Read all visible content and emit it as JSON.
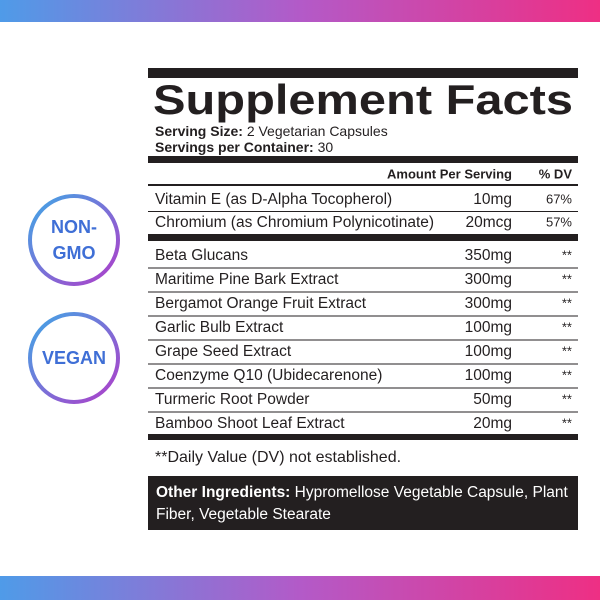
{
  "badges": [
    {
      "lines": [
        "NON-",
        "GMO"
      ]
    },
    {
      "lines": [
        "VEGAN"
      ]
    }
  ],
  "label": {
    "title": "Supplement Facts",
    "serving_size": {
      "label": "Serving Size:",
      "value": "2 Vegetarian Capsules"
    },
    "servings_per_container": {
      "label": "Servings per Container:",
      "value": "30"
    },
    "header": {
      "amount": "Amount Per Serving",
      "dv": "% DV"
    },
    "vitamins": [
      {
        "name": "Vitamin E (as D-Alpha Tocopherol)",
        "amount": "10mg",
        "dv": "67%"
      },
      {
        "name": "Chromium (as Chromium Polynicotinate)",
        "amount": "20mcg",
        "dv": "57%"
      }
    ],
    "extracts": [
      {
        "name": "Beta Glucans",
        "amount": "350mg",
        "dv": "**"
      },
      {
        "name": "Maritime Pine Bark Extract",
        "amount": "300mg",
        "dv": "**"
      },
      {
        "name": "Bergamot Orange Fruit Extract",
        "amount": "300mg",
        "dv": "**"
      },
      {
        "name": "Garlic Bulb Extract",
        "amount": "100mg",
        "dv": "**"
      },
      {
        "name": "Grape Seed Extract",
        "amount": "100mg",
        "dv": "**"
      },
      {
        "name": "Coenzyme Q10 (Ubidecarenone)",
        "amount": "100mg",
        "dv": "**"
      },
      {
        "name": "Turmeric Root Powder",
        "amount": "50mg",
        "dv": "**"
      },
      {
        "name": "Bamboo Shoot Leaf Extract",
        "amount": "20mg",
        "dv": "**"
      }
    ],
    "footnote": "**Daily Value (DV) not established.",
    "other_ingredients": {
      "label": "Other Ingredients:",
      "text": "Hypromellose Vegetable Capsule, Plant Fiber, Vegetable Stearate"
    }
  }
}
